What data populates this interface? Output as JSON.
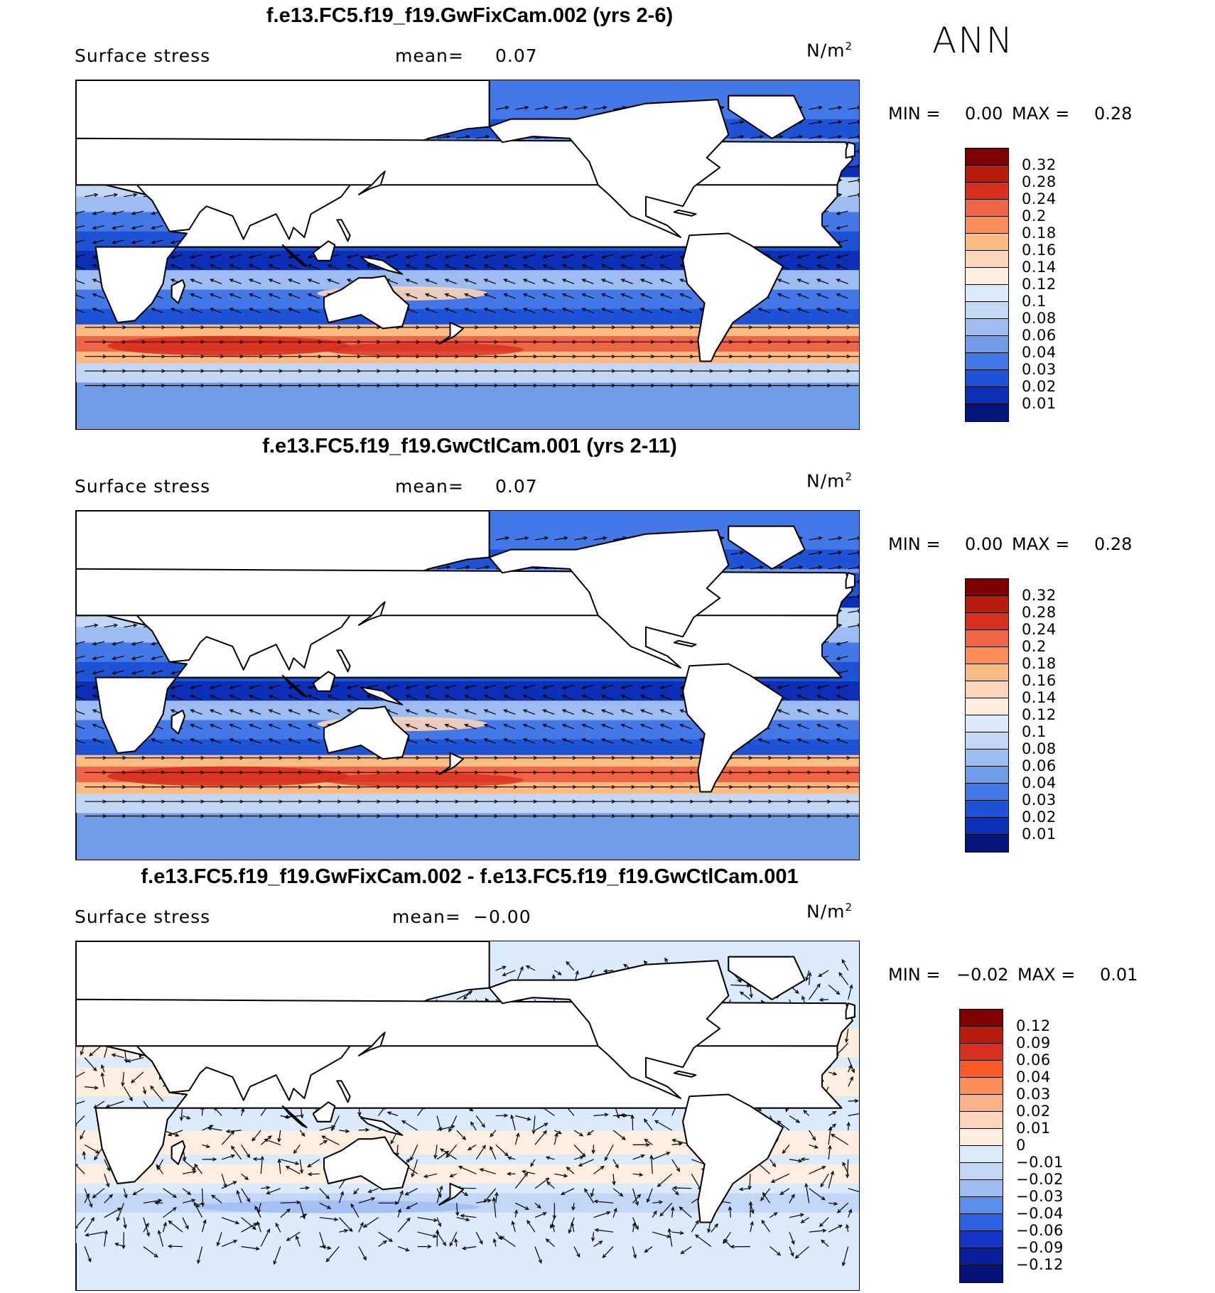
{
  "season": "ANN",
  "panels": [
    {
      "title": "f.e13.FC5.f19_f19.GwFixCam.002 (yrs 2-6)",
      "field_label": "Surface stress",
      "mean_label": "mean=",
      "mean_value": "0.07",
      "units": "N/m",
      "units_sup": "2",
      "min_label": "MIN =",
      "min_value": "0.00",
      "max_label": "MAX =",
      "max_value": "0.28",
      "kind": "abs",
      "colorbar_ticks": [
        "0.32",
        "0.28",
        "0.24",
        "0.2",
        "0.18",
        "0.16",
        "0.14",
        "0.12",
        "0.1",
        "0.08",
        "0.06",
        "0.04",
        "0.03",
        "0.02",
        "0.01"
      ],
      "colorbar_colors": [
        "#7f0000",
        "#b71c0c",
        "#d7301f",
        "#ef6548",
        "#fc8d59",
        "#fdbb84",
        "#fdd4b8",
        "#fdeee0",
        "#dbeafc",
        "#c2d6f6",
        "#9dbcf2",
        "#6f9be8",
        "#4478e6",
        "#1f53d6",
        "#0b2fb6",
        "#04157e"
      ]
    },
    {
      "title": "f.e13.FC5.f19_f19.GwCtlCam.001 (yrs 2-11)",
      "field_label": "Surface stress",
      "mean_label": "mean=",
      "mean_value": "0.07",
      "units": "N/m",
      "units_sup": "2",
      "min_label": "MIN =",
      "min_value": "0.00",
      "max_label": "MAX =",
      "max_value": "0.28",
      "kind": "abs",
      "colorbar_ticks": [
        "0.32",
        "0.28",
        "0.24",
        "0.2",
        "0.18",
        "0.16",
        "0.14",
        "0.12",
        "0.1",
        "0.08",
        "0.06",
        "0.04",
        "0.03",
        "0.02",
        "0.01"
      ],
      "colorbar_colors": [
        "#7f0000",
        "#b71c0c",
        "#d7301f",
        "#ef6548",
        "#fc8d59",
        "#fdbb84",
        "#fdd4b8",
        "#fdeee0",
        "#dbeafc",
        "#c2d6f6",
        "#9dbcf2",
        "#6f9be8",
        "#4478e6",
        "#1f53d6",
        "#0b2fb6",
        "#04157e"
      ]
    },
    {
      "title": "f.e13.FC5.f19_f19.GwFixCam.002 - f.e13.FC5.f19_f19.GwCtlCam.001",
      "field_label": "Surface stress",
      "mean_label": "mean=",
      "mean_value": "−0.00",
      "units": "N/m",
      "units_sup": "2",
      "min_label": "MIN =",
      "min_value": "−0.02",
      "max_label": "MAX =",
      "max_value": "0.01",
      "kind": "diff",
      "colorbar_ticks": [
        "0.12",
        "0.09",
        "0.06",
        "0.04",
        "0.03",
        "0.02",
        "0.01",
        "0",
        "−0.01",
        "−0.02",
        "−0.03",
        "−0.04",
        "−0.06",
        "−0.09",
        "−0.12"
      ],
      "colorbar_colors": [
        "#7f0000",
        "#b71c0c",
        "#d7301f",
        "#fc5a2a",
        "#fc8d59",
        "#fdb08a",
        "#fdd4b8",
        "#fdeedf",
        "#dbeafc",
        "#c2d6f6",
        "#9dbcf2",
        "#5b8cea",
        "#2e62e2",
        "#1437c8",
        "#0a1f9c",
        "#041279"
      ]
    }
  ]
}
